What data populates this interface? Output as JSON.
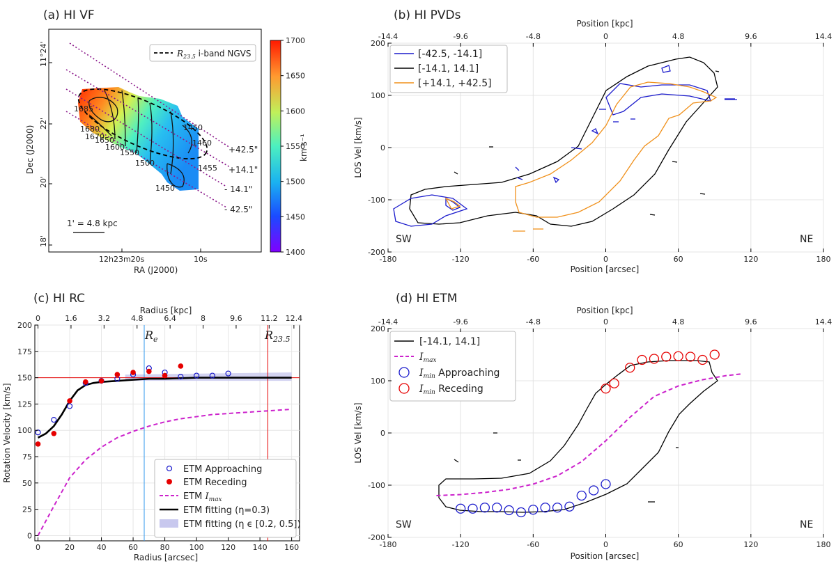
{
  "panel_a": {
    "title": "(a) HI VF",
    "xlabel": "RA (J2000)",
    "ylabel": "Dec (J2000)",
    "x_ticks": [
      "12h23m20s",
      "10s"
    ],
    "y_ticks": [
      "18'",
      "20'",
      "22'",
      "11°24'"
    ],
    "legend": "R23.5 i-band NGVS",
    "legend_math": "R",
    "legend_sub": "23.5",
    "legend_rest": " i-band NGVS",
    "scalebar": "1' = 4.8 kpc",
    "colorbar_label": "km s⁻¹",
    "colorbar_ticks": [
      "1400",
      "1450",
      "1500",
      "1550",
      "1600",
      "1650",
      "1700"
    ],
    "colorbar_range": [
      1400,
      1700
    ],
    "contour_labels": [
      "1685",
      "1680",
      "1670",
      "1650",
      "1600",
      "1550",
      "1500",
      "1450",
      "1450",
      "1460",
      "1455"
    ],
    "slit_labels": [
      "+42.5\"",
      "+14.1\"",
      "- 14.1\"",
      "- 42.5\""
    ],
    "colors": {
      "slit": "#8b1a8b"
    }
  },
  "panel_b": {
    "title": "(b) HI PVDs",
    "xlabel": "Position [arcsec]",
    "ylabel": "LOS Vel [km/s]",
    "top_label": "Position [kpc]",
    "x_ticks": [
      "-180",
      "-120",
      "-60",
      "0",
      "60",
      "120",
      "180"
    ],
    "top_ticks": [
      "-14.4",
      "-9.6",
      "-4.8",
      "0",
      "4.8",
      "9.6",
      "14.4"
    ],
    "y_ticks": [
      "-200",
      "-100",
      "0",
      "100",
      "200"
    ],
    "legend": [
      "[-42.5, -14.1]",
      "[-14.1, 14.1]",
      "[+14.1, +42.5]"
    ],
    "colors": [
      "#1a1acc",
      "#000000",
      "#f0901a"
    ],
    "sw": "SW",
    "ne": "NE"
  },
  "panel_c": {
    "title": "(c) HI RC",
    "xlabel": "Radius [arcsec]",
    "ylabel": "Rotation Velocity [km/s]",
    "top_label": "Radius [kpc]",
    "x_ticks": [
      "0",
      "20",
      "40",
      "60",
      "80",
      "100",
      "120",
      "140",
      "160"
    ],
    "top_ticks": [
      "0",
      "1.6",
      "3.2",
      "4.8",
      "6.4",
      "8",
      "9.6",
      "11.2",
      "12.4"
    ],
    "y_ticks": [
      "0",
      "25",
      "50",
      "75",
      "100",
      "125",
      "150",
      "175",
      "200"
    ],
    "re_label": "Re",
    "re_sub": "e",
    "r235_label": "R23.5",
    "r235_sub": "23.5",
    "legend": [
      "ETM Approaching",
      "ETM Receding",
      "ETM Imax",
      "ETM fitting (η=0.3)",
      "ETM fitting (η ϵ [0.2, 0.5])"
    ],
    "colors": {
      "approach": "#1a1acc",
      "recede": "#e60000",
      "imax": "#cc22cc",
      "re": "#3399ee",
      "r235": "#e60000",
      "band": "#c8c8ee"
    }
  },
  "panel_d": {
    "title": "(d) HI ETM",
    "xlabel": "Position [arcsec]",
    "ylabel": "LOS Vel [km/s]",
    "top_label": "Position [kpc]",
    "x_ticks": [
      "-180",
      "-120",
      "-60",
      "0",
      "60",
      "120",
      "180"
    ],
    "top_ticks": [
      "-14.4",
      "-9.6",
      "-4.8",
      "0",
      "4.8",
      "9.6",
      "14.4"
    ],
    "y_ticks": [
      "-200",
      "-100",
      "0",
      "100",
      "200"
    ],
    "legend": [
      "[-14.1, 14.1]",
      "Imax",
      "Imin Approaching",
      "Imin Receding"
    ],
    "sw": "SW",
    "ne": "NE"
  },
  "chart_data": [
    {
      "type": "heatmap",
      "title": "(a) HI VF",
      "xlabel": "RA (J2000)",
      "ylabel": "Dec (J2000)",
      "colorbar": {
        "label": "km s-1",
        "range": [
          1400,
          1700
        ]
      },
      "contour_levels": [
        1450,
        1455,
        1460,
        1500,
        1550,
        1600,
        1650,
        1670,
        1680,
        1685
      ]
    },
    {
      "type": "line",
      "title": "(b) HI PVDs",
      "xlabel": "Position [arcsec]",
      "ylabel": "LOS Vel [km/s]",
      "xlim": [
        -180,
        180
      ],
      "ylim": [
        -200,
        200
      ],
      "series": [
        {
          "name": "[-42.5, -14.1]",
          "color": "#1a1acc"
        },
        {
          "name": "[-14.1, 14.1]",
          "color": "#000000"
        },
        {
          "name": "[+14.1, +42.5]",
          "color": "#f0901a"
        }
      ]
    },
    {
      "type": "scatter",
      "title": "(c) HI RC",
      "xlabel": "Radius [arcsec]",
      "ylabel": "Rotation Velocity [km/s]",
      "xlim": [
        -2,
        165
      ],
      "ylim": [
        -5,
        200
      ],
      "hline": 150,
      "re": 67,
      "r235": 145,
      "approaching": {
        "x": [
          0,
          10,
          20,
          30,
          40,
          50,
          60,
          70,
          80,
          90,
          100,
          110,
          120
        ],
        "y": [
          98,
          110,
          123,
          145,
          147,
          149,
          153,
          159,
          155,
          151,
          152,
          152,
          154
        ]
      },
      "receding": {
        "x": [
          0,
          10,
          20,
          30,
          40,
          50,
          60,
          70,
          80,
          90
        ],
        "y": [
          87,
          97,
          128,
          146,
          147,
          153,
          155,
          156,
          152,
          161
        ]
      },
      "imax": {
        "x": [
          0,
          10,
          20,
          30,
          40,
          50,
          60,
          70,
          80,
          90,
          100,
          110,
          120,
          130,
          140,
          150,
          160
        ],
        "y": [
          0,
          28,
          55,
          72,
          84,
          93,
          99,
          104,
          108,
          111,
          113,
          115,
          116,
          117,
          118,
          119,
          120
        ]
      },
      "fit": {
        "x": [
          0,
          5,
          10,
          15,
          20,
          25,
          30,
          35,
          40,
          50,
          60,
          70,
          80,
          100,
          120,
          140,
          160
        ],
        "y": [
          93,
          97,
          104,
          115,
          128,
          138,
          143,
          145,
          146,
          147,
          148,
          149,
          149,
          150,
          150,
          150,
          150
        ]
      },
      "band": {
        "x": [
          55,
          160
        ],
        "low": [
          147,
          147
        ],
        "high": [
          153,
          155
        ]
      }
    },
    {
      "type": "line",
      "title": "(d) HI ETM",
      "xlabel": "Position [arcsec]",
      "ylabel": "LOS Vel [km/s]",
      "xlim": [
        -180,
        180
      ],
      "ylim": [
        -200,
        200
      ],
      "imax": {
        "x": [
          -140,
          -120,
          -100,
          -80,
          -60,
          -40,
          -20,
          0,
          20,
          40,
          60,
          80,
          100,
          112
        ],
        "y": [
          -120,
          -118,
          -114,
          -108,
          -98,
          -82,
          -55,
          -15,
          30,
          70,
          90,
          102,
          110,
          113
        ]
      },
      "approaching": {
        "x": [
          -120,
          -110,
          -100,
          -90,
          -80,
          -70,
          -60,
          -50,
          -40,
          -30,
          -20,
          -10,
          0
        ],
        "y": [
          -145,
          -145,
          -143,
          -143,
          -148,
          -152,
          -147,
          -143,
          -143,
          -141,
          -120,
          -110,
          -98
        ]
      },
      "receding": {
        "x": [
          0,
          7,
          20,
          30,
          40,
          50,
          60,
          70,
          80,
          90
        ],
        "y": [
          85,
          95,
          125,
          140,
          142,
          146,
          147,
          146,
          140,
          150
        ]
      }
    }
  ]
}
